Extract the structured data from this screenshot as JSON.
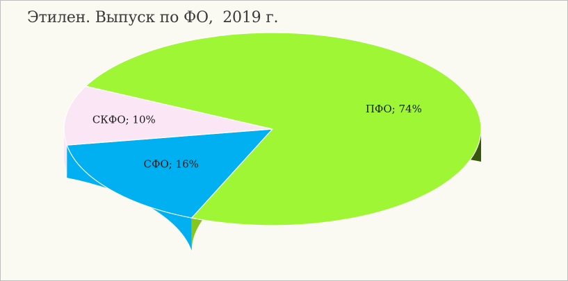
{
  "chart_data": {
    "type": "pie",
    "variant": "3d",
    "title": "Этилен. Выпуск по ФО,  2019 г.",
    "units": "%",
    "slices": [
      {
        "name": "СФО",
        "value": 16,
        "label": "СФО; 16%",
        "color": "#00b0f0"
      },
      {
        "name": "СКФО",
        "value": 10,
        "label": "СКФО; 10%",
        "color": "#fae6f4"
      },
      {
        "name": "ПФО",
        "value": 74,
        "label": "ПФО; 74%",
        "color": "#9ef635"
      }
    ],
    "legend": "none"
  }
}
